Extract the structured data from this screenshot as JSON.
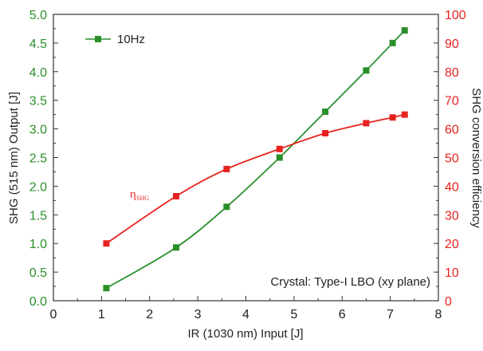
{
  "chart_data": {
    "type": "line",
    "xlabel": "IR (1030 nm) Input [J]",
    "ylabel": "SHG (515 nm) Output [J]",
    "ylabel_right": "SHG conversion efficiency",
    "xlim": [
      0,
      8
    ],
    "ylim": [
      0,
      5.0
    ],
    "ylim_right": [
      0,
      100
    ],
    "x_ticks": [
      "0",
      "1",
      "2",
      "3",
      "4",
      "5",
      "6",
      "7",
      "8"
    ],
    "y_ticks": [
      "0.0",
      "0.5",
      "1.0",
      "1.5",
      "2.0",
      "2.5",
      "3.0",
      "3.5",
      "4.0",
      "4.5",
      "5.0"
    ],
    "y_right_ticks": [
      "0",
      "10",
      "20",
      "30",
      "40",
      "50",
      "60",
      "70",
      "80",
      "90",
      "100"
    ],
    "grid": false,
    "legend_position": "top-left",
    "series": [
      {
        "name": "10Hz",
        "axis": "left",
        "color": "#2a8f2a",
        "marker": "square",
        "x": [
          1.1,
          2.55,
          3.6,
          4.7,
          5.65,
          6.5,
          7.05,
          7.3
        ],
        "y": [
          0.22,
          0.93,
          1.64,
          2.5,
          3.3,
          4.02,
          4.5,
          4.72
        ]
      },
      {
        "name": "ηSHG",
        "axis": "right",
        "color": "#e8231f",
        "marker": "square",
        "x": [
          1.1,
          2.55,
          3.6,
          4.7,
          5.65,
          6.5,
          7.05,
          7.3
        ],
        "y": [
          20,
          36.5,
          46,
          53,
          58.5,
          62,
          64,
          65
        ]
      }
    ],
    "annotations": {
      "eta_main": "η",
      "eta_sub": "SHG",
      "crystal": "Crystal: Type-I LBO (xy plane)"
    }
  }
}
